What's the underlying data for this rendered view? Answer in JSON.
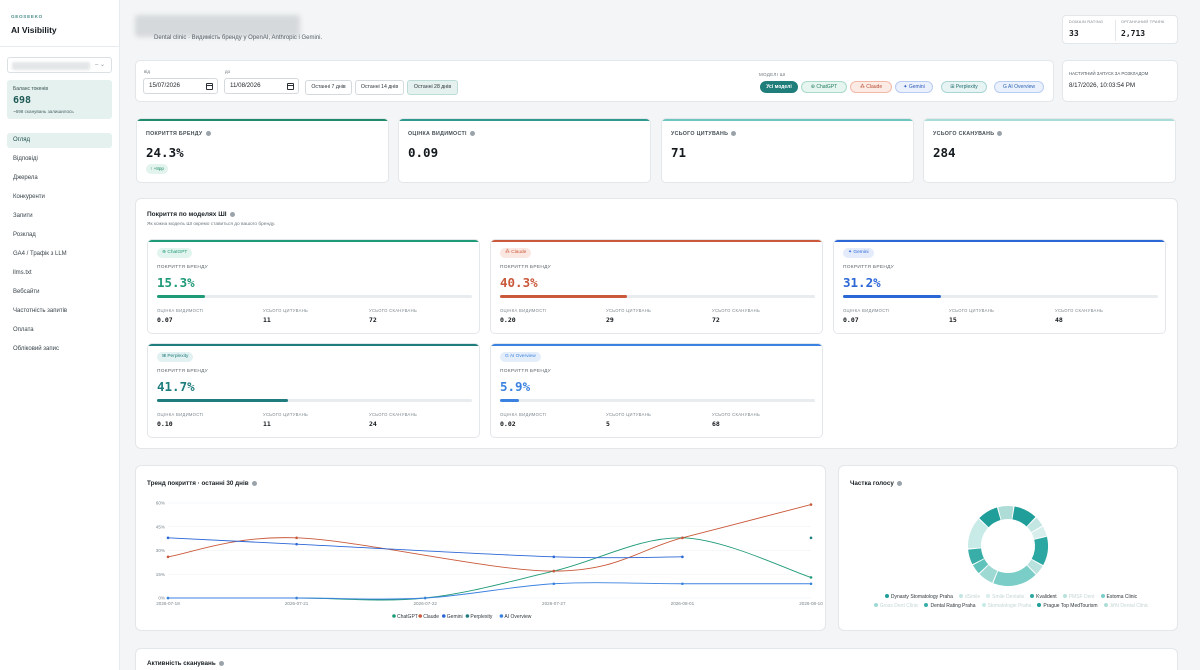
{
  "sidebar": {
    "brand_small": "GEOSEEKO",
    "brand_title": "AI Visibility",
    "token_label": "Баланс токенів",
    "token_value": "698",
    "token_sub": "~698 сканувань залишилось",
    "items": [
      {
        "key": "overview",
        "label": "Огляд",
        "active": true
      },
      {
        "key": "answers",
        "label": "Відповіді"
      },
      {
        "key": "sources",
        "label": "Джерела"
      },
      {
        "key": "competitors",
        "label": "Конкуренти"
      },
      {
        "key": "queries",
        "label": "Запити"
      },
      {
        "key": "schedule",
        "label": "Розклад"
      },
      {
        "key": "ga4",
        "label": "GA4 / Трафік з LLM"
      },
      {
        "key": "llms",
        "label": "llms.txt"
      },
      {
        "key": "websites",
        "label": "Вебсайти"
      },
      {
        "key": "frequency",
        "label": "Частотність запитів"
      },
      {
        "key": "billing",
        "label": "Оплата"
      },
      {
        "key": "account",
        "label": "Обліковий запис"
      }
    ]
  },
  "header": {
    "subtitle": "Dental clinic · Видимість бренду у OpenAI, Anthropic і Gemini.",
    "domain_rating_label": "DOMAIN RATING",
    "domain_rating_value": "33",
    "organic_traffic_label": "ОРГАНІЧНИЙ ТРАФІК",
    "organic_traffic_value": "2,713"
  },
  "filters": {
    "from_label": "від",
    "from_value": "15/07/2026",
    "to_label": "до",
    "to_value": "11/08/2026",
    "ranges": [
      "Останні 7 днів",
      "Останні 14 днів",
      "Останні 28 днів"
    ],
    "active_range": 2,
    "models_label": "МОДЕЛІ ШІ",
    "model_chips": [
      {
        "label": "Усі моделі",
        "icon": ""
      },
      {
        "label": "ChatGPT",
        "icon": "chatgpt-icon"
      },
      {
        "label": "Claude",
        "icon": "claude-icon"
      },
      {
        "label": "Gemini",
        "icon": "gemini-icon"
      },
      {
        "label": "Perplexity",
        "icon": "perplexity-icon"
      },
      {
        "label": "AI Overview",
        "icon": "google-icon"
      }
    ]
  },
  "next_run": {
    "label": "НАСТУПНИЙ ЗАПУСК ЗА РОЗКЛАДОМ",
    "value": "8/17/2026, 10:03:54 PM"
  },
  "kpis": [
    {
      "label": "ПОКРИТТЯ БРЕНДУ",
      "value": "24.3%",
      "delta": "+8pp",
      "color": "#1f8a6c"
    },
    {
      "label": "ОЦІНКА ВИДИМОСТІ",
      "value": "0.09",
      "color": "#2e9a8f"
    },
    {
      "label": "УСЬОГО ЦИТУВАНЬ",
      "value": "71",
      "color": "#6cc6bd"
    },
    {
      "label": "УСЬОГО СКАНУВАНЬ",
      "value": "284",
      "color": "#a8dcd6"
    }
  ],
  "model_coverage": {
    "title": "Покриття по моделях ШІ",
    "subtitle": "Як кожна модель ШІ окремо ставиться до вашого бренду.",
    "coverage_label": "ПОКРИТТЯ БРЕНДУ",
    "visibility_label": "ОЦІНКА ВИДИМОСТІ",
    "citations_label": "УСЬОГО ЦИТУВАНЬ",
    "scans_label": "УСЬОГО СКАНУВАНЬ",
    "models": [
      {
        "name": "ChatGPT",
        "coverage": "15.3%",
        "fraction": 0.153,
        "visibility": "0.07",
        "citations": "11",
        "scans": "72",
        "color": "#1f9a78",
        "chip_bg": "#e2f4ee",
        "icon": "chatgpt-icon"
      },
      {
        "name": "Claude",
        "coverage": "40.3%",
        "fraction": 0.403,
        "visibility": "0.20",
        "citations": "29",
        "scans": "72",
        "color": "#c9593a",
        "chip_bg": "#fbe7e1",
        "icon": "claude-icon"
      },
      {
        "name": "Gemini",
        "coverage": "31.2%",
        "fraction": 0.312,
        "visibility": "0.07",
        "citations": "15",
        "scans": "48",
        "color": "#2c67d6",
        "chip_bg": "#e4ecfb",
        "icon": "gemini-icon"
      },
      {
        "name": "Perplexity",
        "coverage": "41.7%",
        "fraction": 0.417,
        "visibility": "0.10",
        "citations": "11",
        "scans": "24",
        "color": "#1f7d7d",
        "chip_bg": "#e2f1f1",
        "icon": "perplexity-icon"
      },
      {
        "name": "AI Overview",
        "coverage": "5.9%",
        "fraction": 0.059,
        "visibility": "0.02",
        "citations": "5",
        "scans": "68",
        "color": "#3b82e0",
        "chip_bg": "#e4eefb",
        "icon": "google-icon"
      }
    ]
  },
  "trend_title": "Тренд покриття · останні 30 днів",
  "share_title": "Частка голосу",
  "activity_title": "Активність сканувань",
  "chart_data": [
    {
      "type": "line",
      "title": "Тренд покриття · останні 30 днів",
      "x": [
        "2026-07-18",
        "2026-07-21",
        "2026-07-22",
        "2026-07-27",
        "2026-08-01",
        "2026-08-10"
      ],
      "ylim": [
        0,
        60
      ],
      "yticks": [
        "0%",
        "15%",
        "30%",
        "45%",
        "60%"
      ],
      "grid": true,
      "legend": "bottom",
      "series": [
        {
          "name": "ChatGPT",
          "color": "#1f9a78",
          "values": [
            0,
            0,
            0,
            17,
            38,
            13
          ]
        },
        {
          "name": "Claude",
          "color": "#c9593a",
          "values": [
            26,
            38,
            null,
            17,
            38,
            59
          ]
        },
        {
          "name": "Gemini",
          "color": "#2c67d6",
          "values": [
            38,
            34,
            null,
            26,
            26,
            null
          ]
        },
        {
          "name": "Perplexity",
          "color": "#1f7d7d",
          "values": [
            null,
            null,
            null,
            null,
            null,
            38
          ]
        },
        {
          "name": "AI Overview",
          "color": "#3b82e0",
          "values": [
            0,
            0,
            0,
            9,
            9,
            9
          ]
        }
      ]
    },
    {
      "type": "pie",
      "title": "Частка голосу",
      "legend": "bottom",
      "labels": [
        "Dynasty Stomatology Praha",
        "dSmile",
        "Smile Dentalis",
        "Kvalident",
        "PMSF Dent",
        "Estoma Clinic",
        "Gross Dent Clinic",
        "",
        "Dental Rating Praha",
        "Stomatologie Praha",
        "Prague Top MedTourism",
        "Jiřňt Dental Clinic"
      ],
      "values": [
        9,
        4,
        4,
        11,
        4,
        17,
        6,
        4,
        6,
        12,
        8,
        6
      ],
      "colors": [
        "#1f9e9a",
        "#c3e6e3",
        "#d8eeec",
        "#2da7a1",
        "#b9e2de",
        "#7acec7",
        "#9fd9d3",
        "#5fc3bc",
        "#39aea8",
        "#c8ebe8",
        "#1f9e9a",
        "#aeddd8"
      ],
      "faded": [
        false,
        true,
        true,
        false,
        true,
        false,
        true,
        true,
        false,
        true,
        false,
        true
      ]
    }
  ]
}
